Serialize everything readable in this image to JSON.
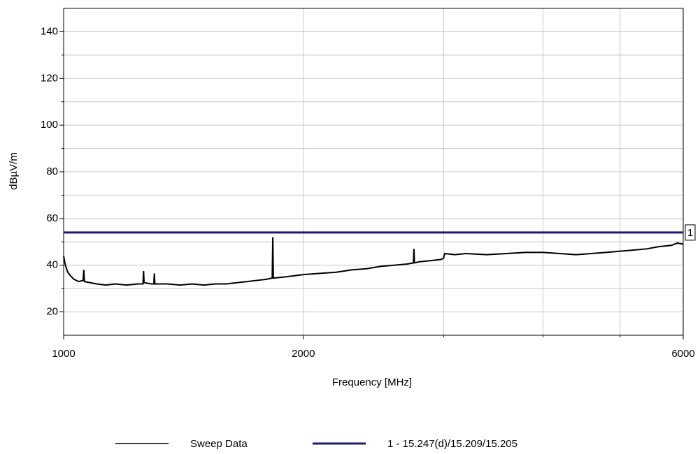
{
  "chart_data": {
    "type": "line",
    "xlabel": "Frequency [MHz]",
    "ylabel": "dBµV/m",
    "xscale": "log",
    "xlim": [
      1000,
      6000
    ],
    "xticks": [
      1000,
      2000,
      6000
    ],
    "x_minor_ticks": [
      3000,
      4000,
      5000
    ],
    "ylim": [
      10,
      150
    ],
    "yticks": [
      20,
      40,
      60,
      80,
      100,
      120,
      140
    ],
    "y_minor_ticks": [
      30,
      50,
      70,
      90,
      110,
      130
    ],
    "grid": true,
    "legend": "bottom",
    "limit_marker": "1",
    "series": [
      {
        "name": "Sweep Data",
        "color": "#000000",
        "x": [
          1000,
          1005,
          1012,
          1020,
          1030,
          1045,
          1058,
          1060,
          1062,
          1080,
          1100,
          1130,
          1160,
          1200,
          1240,
          1258,
          1260,
          1262,
          1290,
          1298,
          1300,
          1302,
          1350,
          1400,
          1450,
          1500,
          1550,
          1600,
          1650,
          1700,
          1750,
          1800,
          1828,
          1831,
          1834,
          1900,
          1950,
          2000,
          2100,
          2200,
          2300,
          2400,
          2500,
          2600,
          2700,
          2750,
          2754,
          2758,
          2800,
          2900,
          2980,
          3000,
          3010,
          3100,
          3200,
          3400,
          3600,
          3800,
          4000,
          4200,
          4400,
          4600,
          4800,
          5000,
          5200,
          5400,
          5600,
          5800,
          5900,
          6000
        ],
        "values": [
          44,
          40,
          37,
          35.5,
          34,
          33,
          33.5,
          38,
          33,
          32.5,
          32,
          31.5,
          32,
          31.5,
          32,
          32,
          37.5,
          32.5,
          32,
          32,
          36.5,
          32,
          32,
          31.5,
          32,
          31.5,
          32,
          32,
          32.5,
          33,
          33.5,
          34,
          34.5,
          52,
          34.5,
          35,
          35.5,
          36,
          36.5,
          37,
          38,
          38.5,
          39.5,
          40,
          40.5,
          41,
          47,
          41,
          41.5,
          42,
          42.5,
          43,
          45,
          44.5,
          45,
          44.5,
          45,
          45.5,
          45.5,
          45,
          44.5,
          45,
          45.5,
          46,
          46.5,
          47,
          48,
          48.5,
          49.5,
          49
        ]
      },
      {
        "name": "1 - 15.247(d)/15.209/15.205",
        "color": "#1c1c6e",
        "x": [
          1000,
          6000
        ],
        "values": [
          54,
          54
        ]
      }
    ]
  }
}
